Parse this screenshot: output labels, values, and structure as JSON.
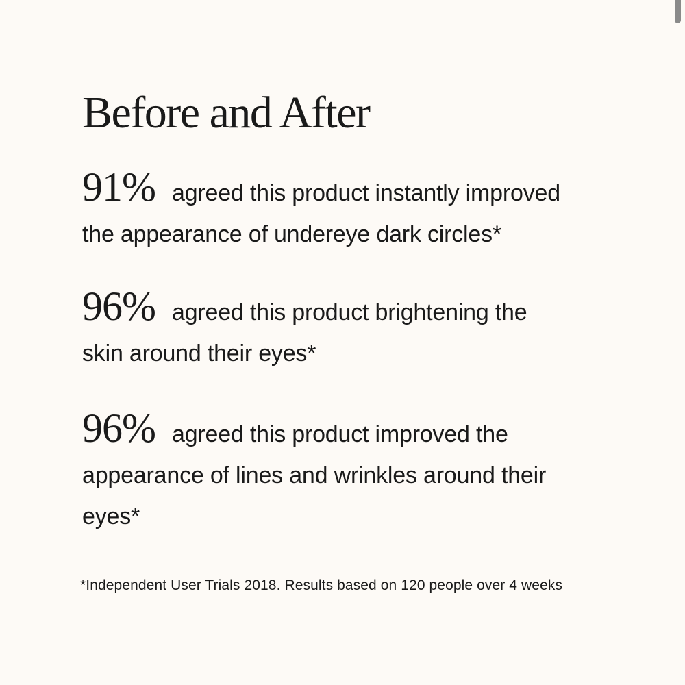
{
  "page": {
    "background_color": "#FDFAF6",
    "text_color": "#1A1A1A",
    "scrollbar_color": "#8A8A8A"
  },
  "heading": "Before and After",
  "stats": [
    {
      "value": "91%",
      "line1": "agreed this product instantly improved",
      "line2": "the appearance of undereye dark circles*"
    },
    {
      "value": "96%",
      "line1": "agreed this product brightening the",
      "line2": "skin around their eyes*"
    },
    {
      "value": "96%",
      "line1": "agreed this product improved the",
      "line2": "appearance of lines and wrinkles around their",
      "line3": "eyes*"
    }
  ],
  "footnote": "*Independent User Trials 2018. Results based on 120 people over 4 weeks"
}
